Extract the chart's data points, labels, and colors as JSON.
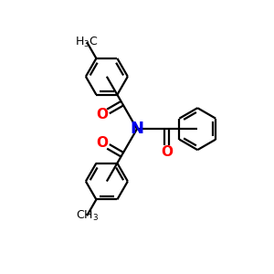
{
  "background_color": "#ffffff",
  "atom_N_color": "#0000ee",
  "atom_O_color": "#ff0000",
  "bond_color": "#000000",
  "line_width": 1.6,
  "figsize": [
    3.0,
    3.0
  ],
  "dpi": 100,
  "xlim": [
    0,
    10
  ],
  "ylim": [
    0,
    10
  ],
  "N_label_fontsize": 13,
  "O_label_fontsize": 11,
  "CH3_label_fontsize": 9
}
